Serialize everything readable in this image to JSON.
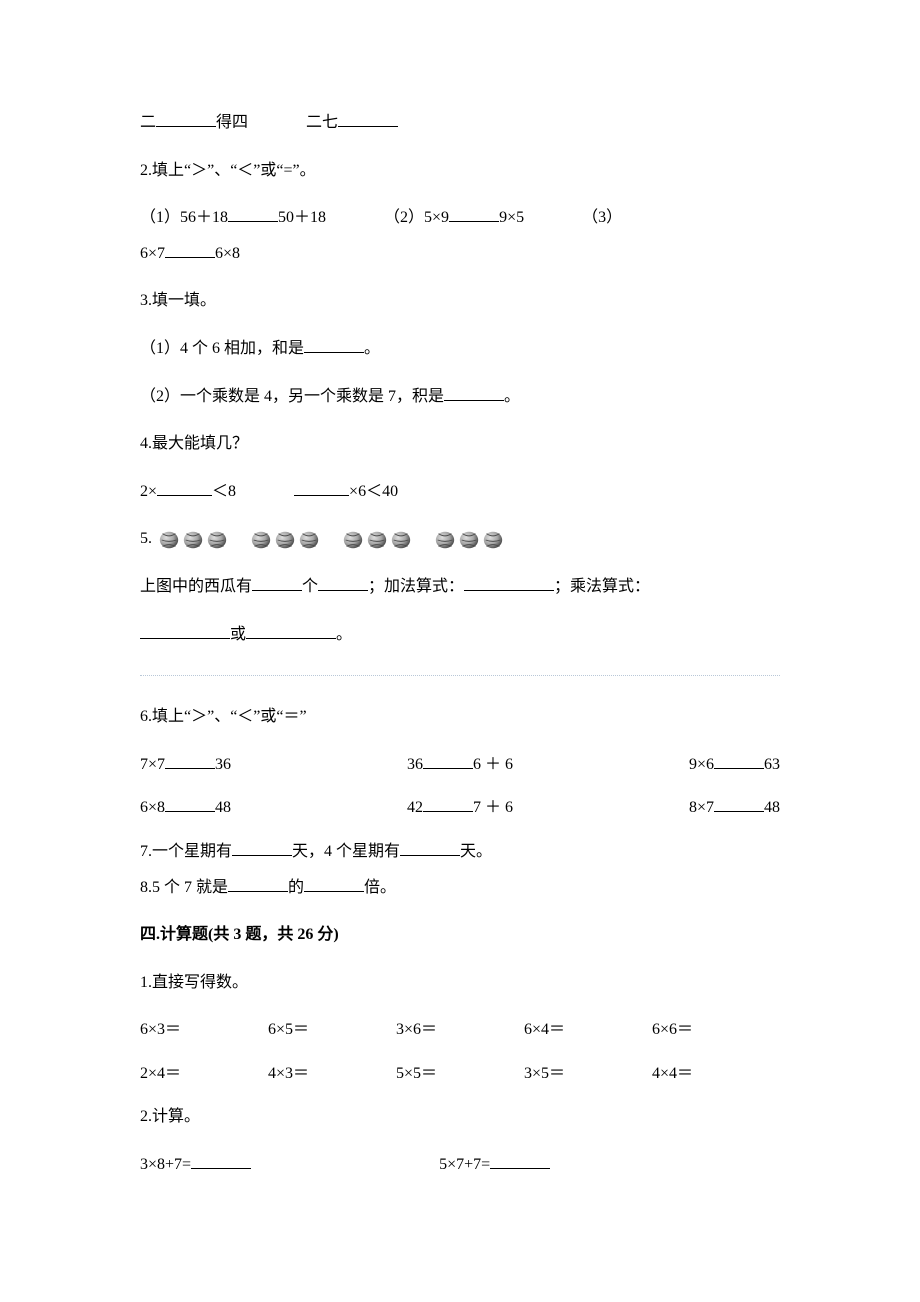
{
  "q1_partial": {
    "left_prefix": "二",
    "left_suffix": "得四",
    "right_prefix": "二七"
  },
  "q2": {
    "title": "2.填上“＞”、“＜”或“=”。",
    "c1_pre": "（1）56＋18",
    "c1_post": "50＋18",
    "c2_pre": "（2）5×9",
    "c2_post": "9×5",
    "c3_pre": "（3）",
    "c3b_pre": "6×7",
    "c3b_post": "6×8"
  },
  "q3": {
    "title": "3.填一填。",
    "a": "（1）4 个 6 相加，和是",
    "a_end": "。",
    "b": "（2）一个乘数是 4，另一个乘数是 7，积是",
    "b_end": "。"
  },
  "q4": {
    "title": "4.最大能填几？",
    "a_pre": "2×",
    "a_post": "＜8",
    "b_post": "×6＜40"
  },
  "q5": {
    "num": "5.",
    "count": 12,
    "groups": 4,
    "per_group": 3,
    "line1_a": "上图中的西瓜有",
    "line1_b": "个",
    "line1_c": "；加法算式：",
    "line1_d": "；乘法算式：",
    "line2_a": "或",
    "line2_b": "。",
    "melon_light": "#dedede",
    "melon_mid": "#a8a8a8",
    "melon_dark": "#4a4a4a"
  },
  "q6": {
    "title": "6.填上“＞”、“＜”或“＝”",
    "r1": [
      {
        "pre": "7×7",
        "post": "36"
      },
      {
        "pre": "36",
        "post": "6 ＋ 6"
      },
      {
        "pre": "9×6",
        "post": "63"
      }
    ],
    "r2": [
      {
        "pre": "6×8",
        "post": "48"
      },
      {
        "pre": "42",
        "post": "7 ＋ 6"
      },
      {
        "pre": "8×7",
        "post": "48"
      }
    ]
  },
  "q7": {
    "a": "7.一个星期有",
    "b": "天，4 个星期有",
    "c": "天。"
  },
  "q8": {
    "a": "8.5 个 7 就是",
    "b": "的",
    "c": "倍。"
  },
  "section4": {
    "title": "四.计算题(共 3 题，共 26 分)"
  },
  "calc1": {
    "title": "1.直接写得数。",
    "r1": [
      "6×3＝",
      "6×5＝",
      "3×6＝",
      "6×4＝",
      "6×6＝"
    ],
    "r2": [
      "2×4＝",
      "4×3＝",
      "5×5＝",
      "3×5＝",
      "4×4＝"
    ]
  },
  "calc2": {
    "title": "2.计算。",
    "a": "3×8+7=",
    "b": "5×7+7="
  }
}
